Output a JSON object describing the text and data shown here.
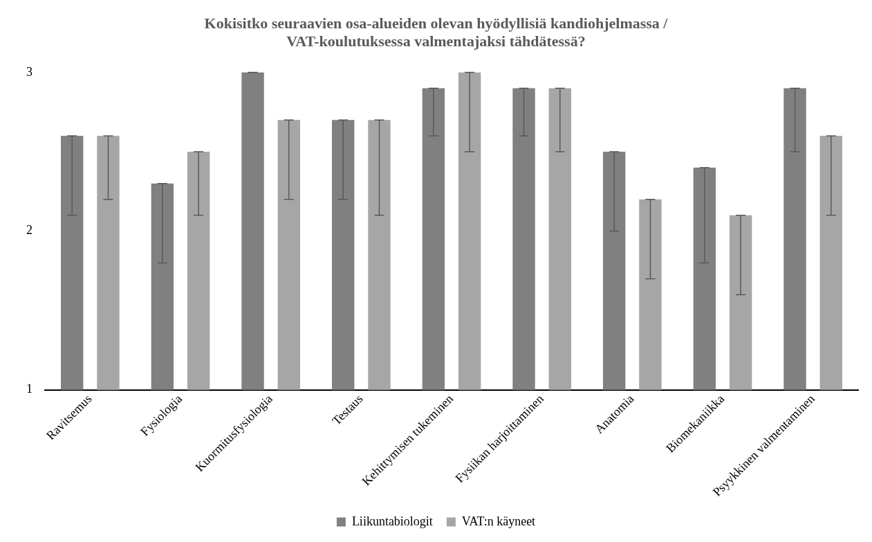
{
  "chart_data": {
    "type": "bar",
    "title": "Kokisitko seuraavien osa-alueiden olevan hyödyllisiä kandiohjelmassa / VAT-koulutuksessa valmentajaksi tähdätessä?",
    "categories": [
      "Ravitsemus",
      "Fysiologia",
      "Kuormitusfysiologia",
      "Testaus",
      "Kehittymisen tukeminen",
      "Fysiikan harjoittaminen",
      "Anatomia",
      "Biomekaniikka",
      "Psyykkinen valmentaminen"
    ],
    "series": [
      {
        "name": "Liikuntabiologit",
        "color": "#808080",
        "values": [
          2.6,
          2.3,
          3.0,
          2.7,
          2.9,
          2.9,
          2.5,
          2.4,
          2.9
        ],
        "errors": [
          [
            2.1,
            2.6
          ],
          [
            1.8,
            2.3
          ],
          [
            3.0,
            3.0
          ],
          [
            2.2,
            2.7
          ],
          [
            2.6,
            2.9
          ],
          [
            2.6,
            2.9
          ],
          [
            2.0,
            2.5
          ],
          [
            1.8,
            2.4
          ],
          [
            2.5,
            2.9
          ]
        ]
      },
      {
        "name": "VAT:n käyneet",
        "color": "#a6a6a6",
        "values": [
          2.6,
          2.5,
          2.7,
          2.7,
          3.0,
          2.9,
          2.2,
          2.1,
          2.6
        ],
        "errors": [
          [
            2.2,
            2.6
          ],
          [
            2.1,
            2.5
          ],
          [
            2.2,
            2.7
          ],
          [
            2.1,
            2.7
          ],
          [
            2.5,
            3.0
          ],
          [
            2.5,
            2.9
          ],
          [
            1.7,
            2.2
          ],
          [
            1.6,
            2.1
          ],
          [
            2.1,
            2.6
          ]
        ]
      }
    ],
    "ylim": [
      1,
      3
    ],
    "yticks": [
      1,
      2,
      3
    ],
    "grid": false,
    "legend": "bottom"
  }
}
